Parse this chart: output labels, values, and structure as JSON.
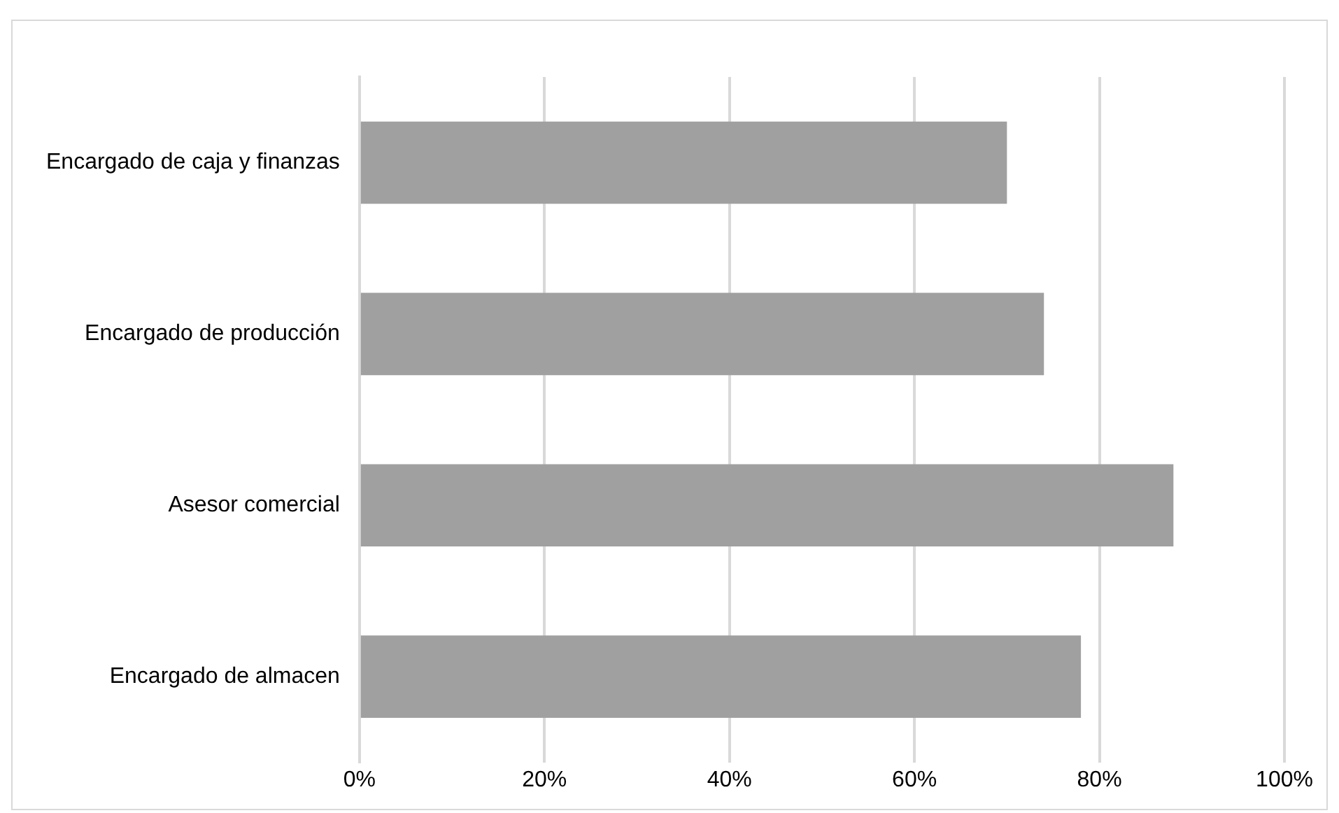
{
  "chart_data": {
    "type": "bar",
    "orientation": "horizontal",
    "categories": [
      "Encargado de caja y finanzas",
      "Encargado de producción",
      "Asesor comercial",
      "Encargado de almacen"
    ],
    "values": [
      70,
      74,
      88,
      78
    ],
    "color": "#a0a0a0",
    "xlim": [
      0,
      100
    ],
    "xticks": [
      {
        "value": 0,
        "label": "0%"
      },
      {
        "value": 20,
        "label": "20%"
      },
      {
        "value": 40,
        "label": "40%"
      },
      {
        "value": 60,
        "label": "60%"
      },
      {
        "value": 80,
        "label": "80%"
      },
      {
        "value": 100,
        "label": "100%"
      }
    ],
    "grid": "x",
    "legend": false
  }
}
